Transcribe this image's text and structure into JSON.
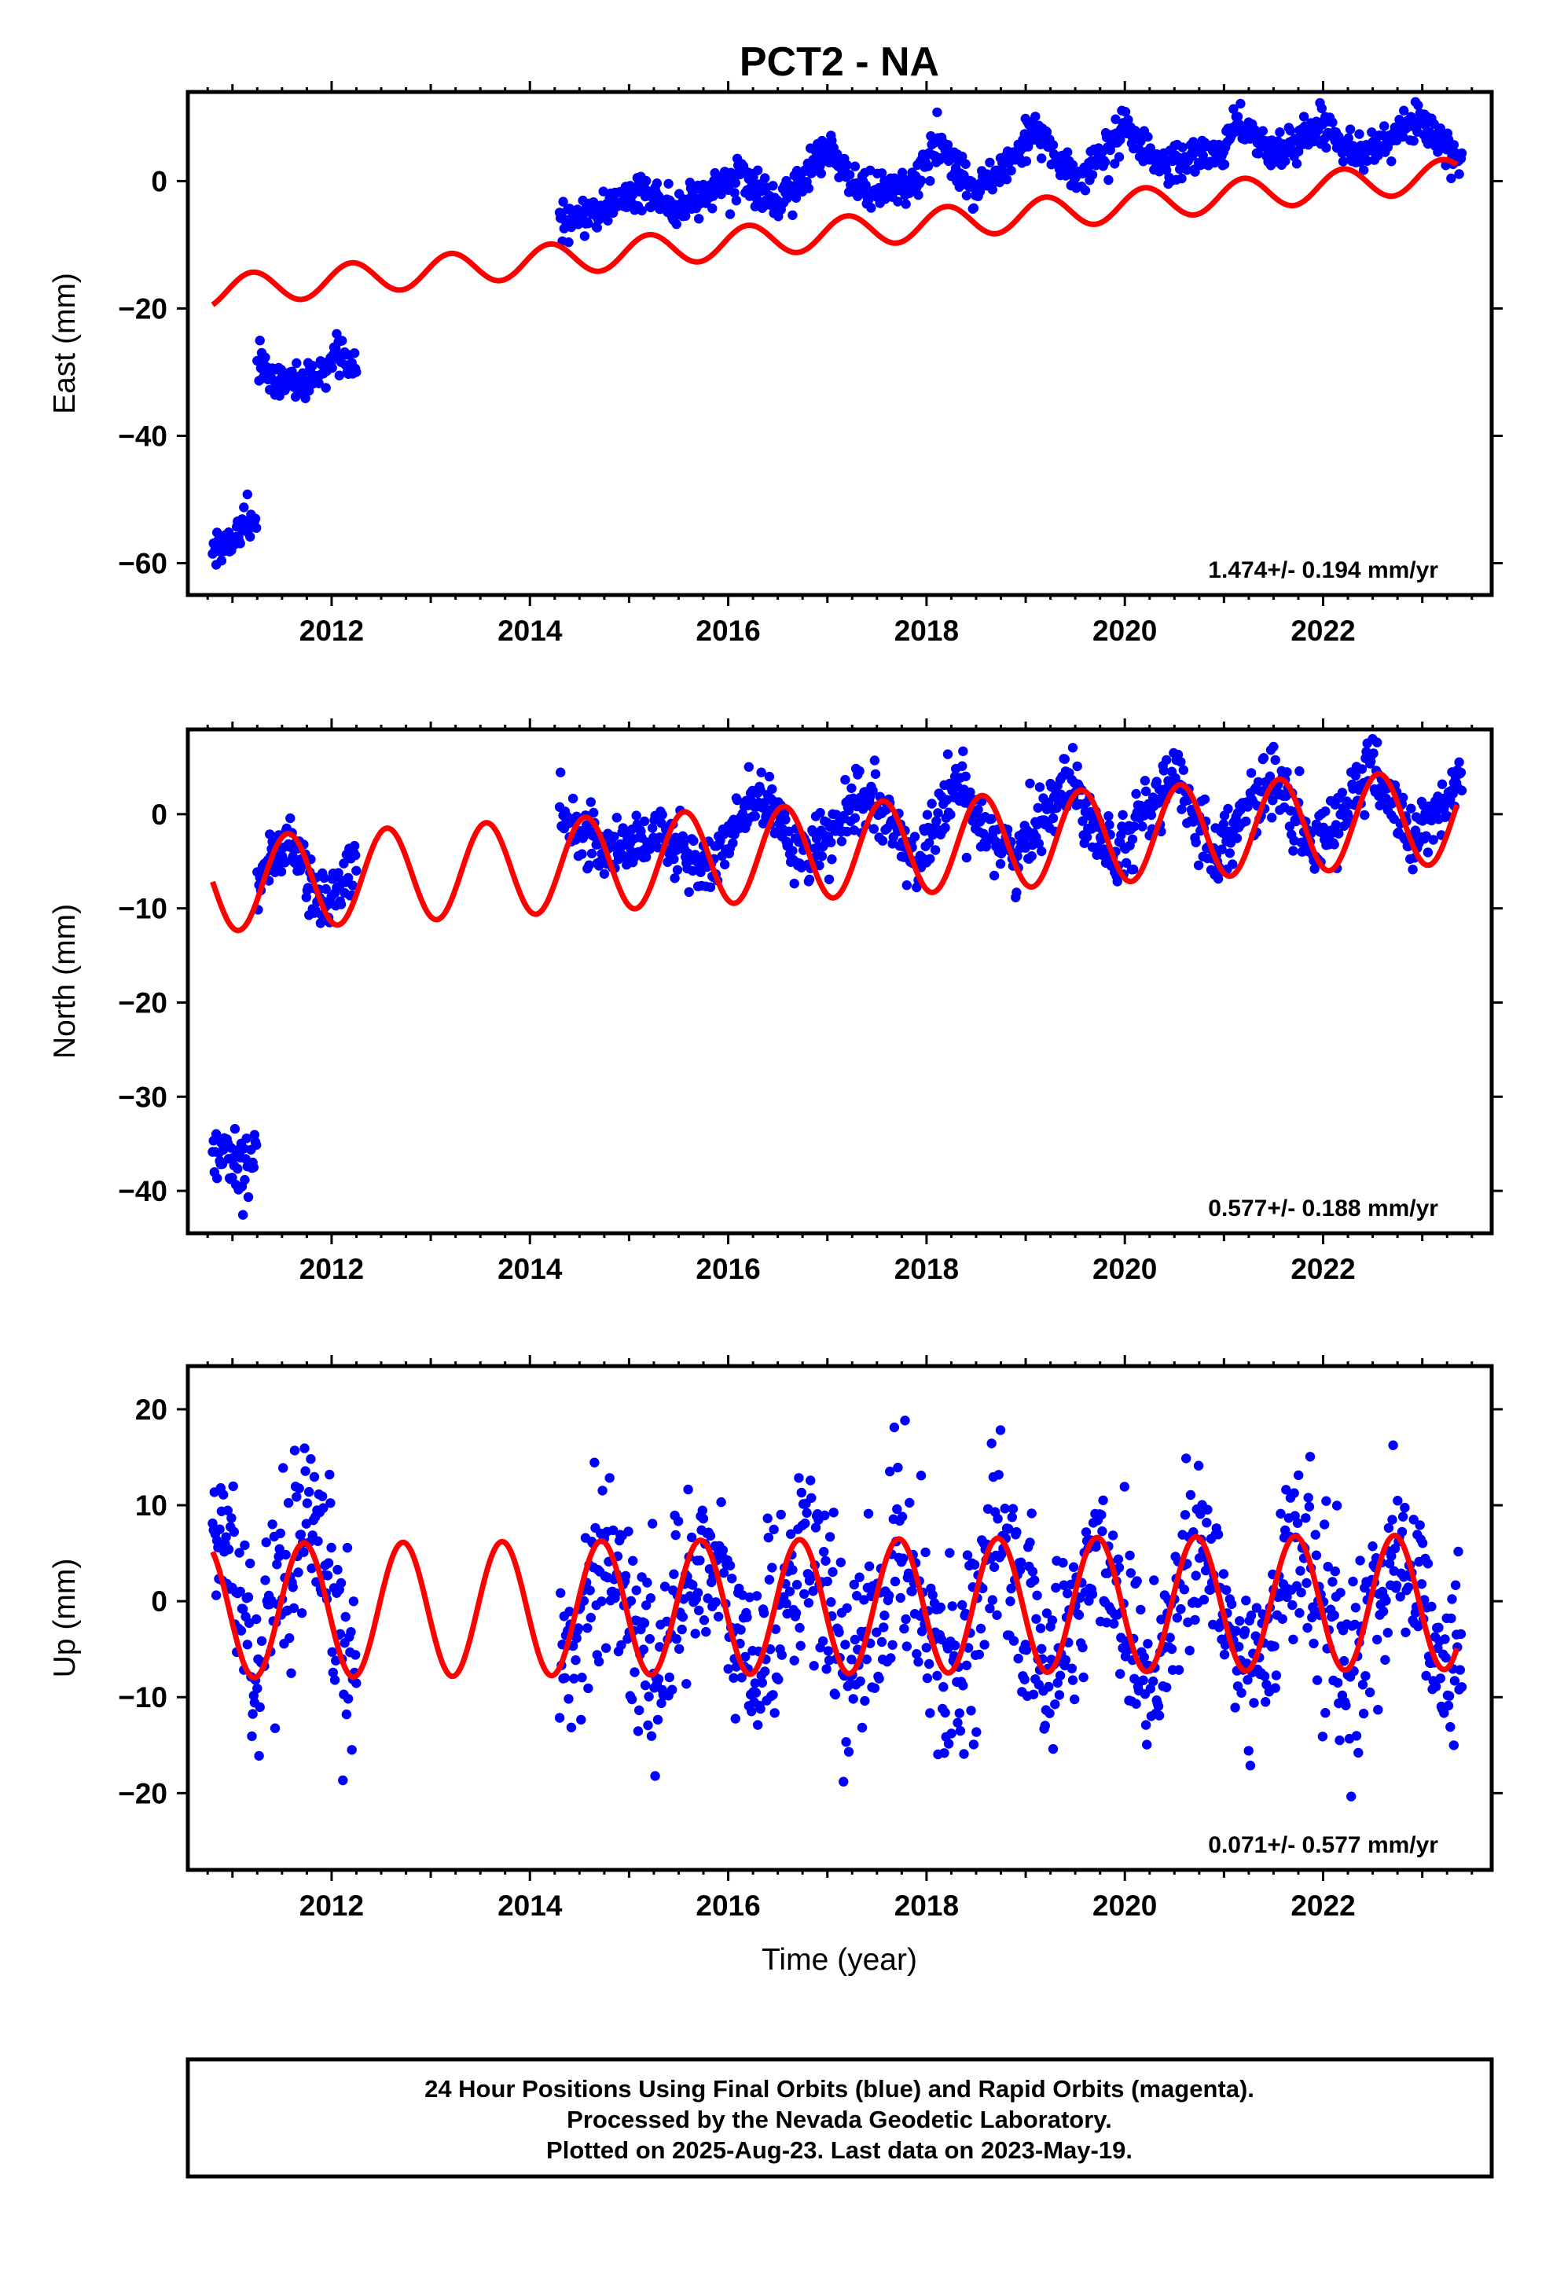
{
  "chart_data": [
    {
      "type": "scatter",
      "title": "PCT2 - NA",
      "xlabel": "",
      "ylabel": "East (mm)",
      "xlim": [
        2010.55,
        2023.7
      ],
      "ylim": [
        -65,
        14
      ],
      "xticks": [
        2012,
        2014,
        2016,
        2018,
        2020,
        2022
      ],
      "yticks": [
        -60,
        -40,
        -20,
        0
      ],
      "rate_text": "1.474+/- 0.194 mm/yr",
      "observations": {
        "segments": [
          {
            "x_range": [
              2010.8,
              2011.25
            ],
            "points": [
              [
                2010.8,
                -57
              ],
              [
                2010.9,
                -58
              ],
              [
                2011.0,
                -56
              ],
              [
                2011.1,
                -54
              ],
              [
                2011.2,
                -53
              ]
            ]
          },
          {
            "x_range": [
              2011.25,
              2012.25
            ],
            "points": [
              [
                2011.25,
                -29
              ],
              [
                2011.45,
                -31
              ],
              [
                2011.65,
                -32
              ],
              [
                2011.9,
                -30
              ],
              [
                2012.1,
                -27
              ],
              [
                2012.25,
                -29
              ]
            ]
          },
          {
            "x_range": [
              2014.3,
              2023.4
            ],
            "points": [
              [
                2014.3,
                -7
              ],
              [
                2014.8,
                -4
              ],
              [
                2015.1,
                -1
              ],
              [
                2015.5,
                -5
              ],
              [
                2016.1,
                1
              ],
              [
                2016.5,
                -4
              ],
              [
                2017.0,
                5
              ],
              [
                2017.4,
                -2
              ],
              [
                2017.9,
                0
              ],
              [
                2018.1,
                6
              ],
              [
                2018.5,
                -2
              ],
              [
                2019.1,
                8
              ],
              [
                2019.5,
                0
              ],
              [
                2020.0,
                8
              ],
              [
                2020.4,
                2
              ],
              [
                2021.0,
                5
              ],
              [
                2021.1,
                10
              ],
              [
                2021.5,
                4
              ],
              [
                2022.0,
                9
              ],
              [
                2022.4,
                4
              ],
              [
                2023.0,
                10
              ],
              [
                2023.3,
                3
              ]
            ]
          }
        ]
      },
      "model": {
        "offset": -17.4,
        "t0": 2010.8,
        "rate": 1.474,
        "amplitude": 2.5,
        "phase_year": 0.2,
        "amplitude_2": 0.0
      }
    },
    {
      "type": "scatter",
      "title": "",
      "xlabel": "",
      "ylabel": "North (mm)",
      "xlim": [
        2010.55,
        2023.7
      ],
      "ylim": [
        -44.5,
        9
      ],
      "xticks": [
        2012,
        2014,
        2016,
        2018,
        2020,
        2022
      ],
      "yticks": [
        -40,
        -30,
        -20,
        -10,
        0
      ],
      "rate_text": "0.577+/- 0.188 mm/yr",
      "observations": {
        "segments": [
          {
            "x_range": [
              2010.8,
              2011.25
            ],
            "points": [
              [
                2010.8,
                -35
              ],
              [
                2010.95,
                -36
              ],
              [
                2011.1,
                -37
              ],
              [
                2011.2,
                -36
              ]
            ]
          },
          {
            "x_range": [
              2011.25,
              2012.25
            ],
            "points": [
              [
                2011.3,
                -6
              ],
              [
                2011.6,
                -3
              ],
              [
                2011.9,
                -10
              ],
              [
                2012.1,
                -7
              ],
              [
                2012.25,
                -6
              ]
            ]
          },
          {
            "x_range": [
              2014.3,
              2023.4
            ],
            "points": [
              [
                2014.3,
                0
              ],
              [
                2014.8,
                -4
              ],
              [
                2015.3,
                -2
              ],
              [
                2015.8,
                -6
              ],
              [
                2016.3,
                2
              ],
              [
                2016.8,
                -5
              ],
              [
                2017.4,
                2
              ],
              [
                2017.9,
                -5
              ],
              [
                2018.3,
                3
              ],
              [
                2018.9,
                -5
              ],
              [
                2019.4,
                4
              ],
              [
                2019.9,
                -4
              ],
              [
                2020.5,
                4
              ],
              [
                2020.9,
                -4
              ],
              [
                2021.5,
                4
              ],
              [
                2021.9,
                -4
              ],
              [
                2022.5,
                5
              ],
              [
                2022.9,
                -3
              ],
              [
                2023.35,
                3
              ]
            ]
          }
        ]
      },
      "model": {
        "offset": -7.5,
        "t0": 2010.8,
        "rate": 0.577,
        "amplitude": 5.0,
        "phase_year": 0.56,
        "amplitude_2": 0.0
      }
    },
    {
      "type": "scatter",
      "title": "",
      "xlabel": "Time (year)",
      "ylabel": "Up (mm)",
      "xlim": [
        2010.55,
        2023.7
      ],
      "ylim": [
        -28,
        24.5
      ],
      "xticks": [
        2012,
        2014,
        2016,
        2018,
        2020,
        2022
      ],
      "yticks": [
        -20,
        -10,
        0,
        10,
        20
      ],
      "rate_text": "0.071+/- 0.577 mm/yr",
      "observations": {
        "segments": [
          {
            "x_range": [
              2010.8,
              2012.25
            ],
            "points": [
              [
                2010.8,
                8
              ],
              [
                2011.0,
                4
              ],
              [
                2011.25,
                -8
              ],
              [
                2011.5,
                0
              ],
              [
                2011.75,
                7
              ],
              [
                2012.0,
                0
              ],
              [
                2012.25,
                -8
              ]
            ]
          },
          {
            "x_range": [
              2014.3,
              2023.4
            ],
            "points": [
              [
                2014.3,
                -8
              ],
              [
                2014.75,
                6
              ],
              [
                2015.25,
                -8
              ],
              [
                2015.75,
                6
              ],
              [
                2016.25,
                -8
              ],
              [
                2016.75,
                6
              ],
              [
                2017.25,
                -8
              ],
              [
                2017.75,
                6
              ],
              [
                2018.25,
                -8
              ],
              [
                2018.75,
                6
              ],
              [
                2019.25,
                -8
              ],
              [
                2019.75,
                6
              ],
              [
                2020.25,
                -8
              ],
              [
                2020.75,
                6
              ],
              [
                2021.25,
                -8
              ],
              [
                2021.75,
                6
              ],
              [
                2022.25,
                -8
              ],
              [
                2022.75,
                6
              ],
              [
                2023.3,
                -7
              ]
            ]
          }
        ]
      },
      "model": {
        "offset": -1.0,
        "t0": 2010.8,
        "rate": 0.071,
        "amplitude": 7.0,
        "phase_year": 0.72,
        "amplitude_2": 0.0
      }
    }
  ],
  "footer": {
    "line1": "24 Hour Positions Using Final Orbits (blue) and Rapid Orbits (magenta).",
    "line2": "Processed by the Nevada Geodetic Laboratory.",
    "line3": "Plotted on 2025-Aug-23. Last data on 2023-May-19."
  },
  "colors": {
    "observations": "#0000ff",
    "model": "#ff0000",
    "frame": "#000000"
  }
}
